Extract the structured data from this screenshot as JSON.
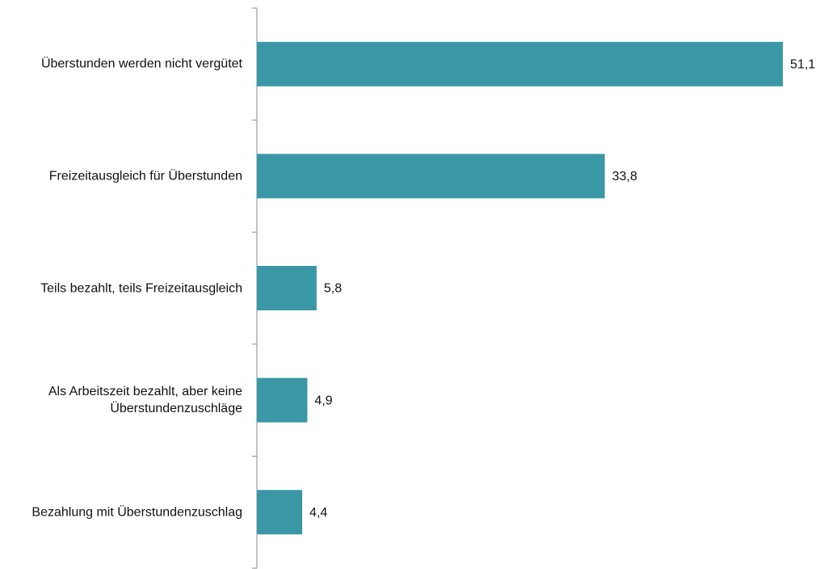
{
  "chart_data": {
    "type": "bar",
    "orientation": "horizontal",
    "categories": [
      "Überstunden werden nicht vergütet",
      "Freizeitausgleich für Überstunden",
      "Teils bezahlt, teils Freizeitausgleich",
      "Als Arbeitszeit bezahlt, aber keine Überstundenzuschläge",
      "Bezahlung mit Überstundenzuschlag"
    ],
    "values": [
      51.1,
      33.8,
      5.8,
      4.9,
      4.4
    ],
    "value_labels": [
      "51,1",
      "33,8",
      "5,8",
      "4,9",
      "4,4"
    ],
    "color": "#3a98a4",
    "xlim": [
      0,
      54
    ]
  }
}
